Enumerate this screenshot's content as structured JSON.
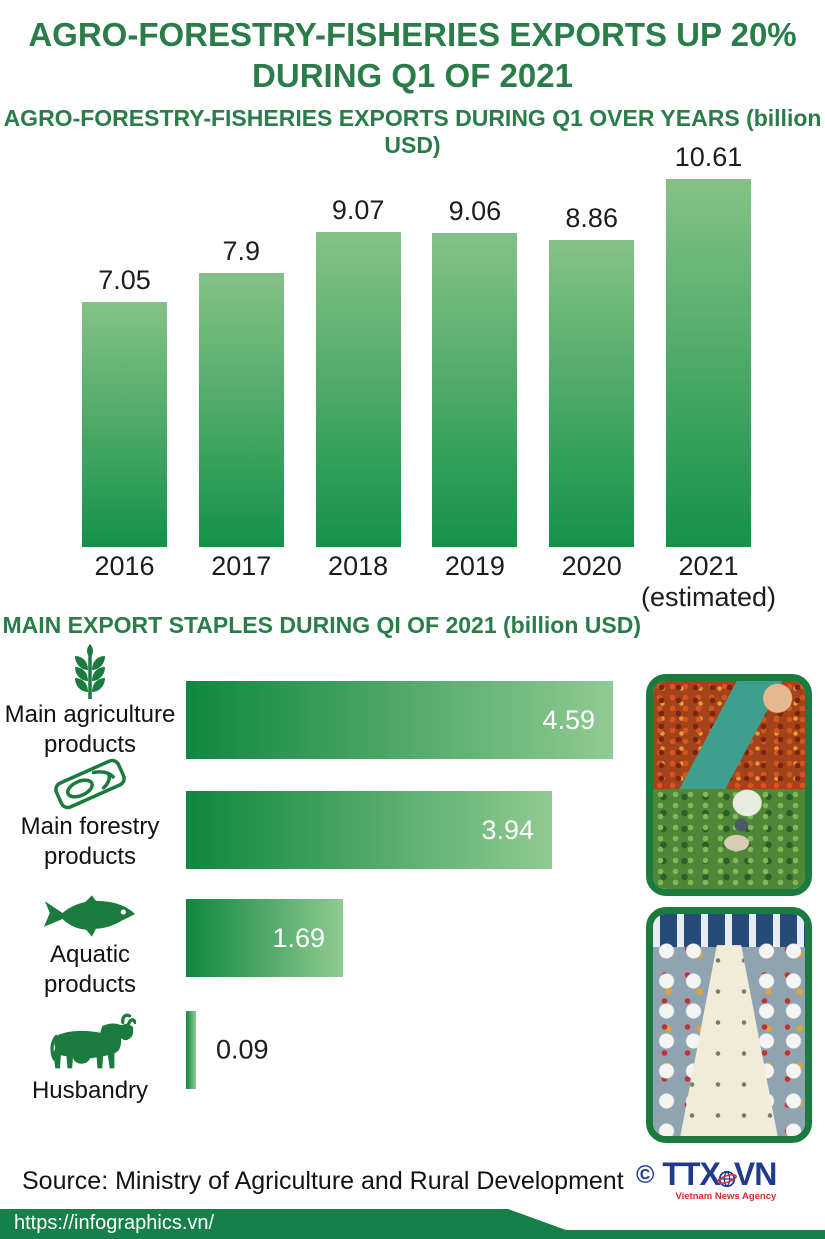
{
  "header": {
    "title_line1": "AGRO-FORESTRY-FISHERIES EXPORTS UP 20%",
    "title_line2": "DURING Q1 OF 2021"
  },
  "chart_data": [
    {
      "type": "bar",
      "orientation": "vertical",
      "title": "AGRO-FORESTRY-FISHERIES EXPORTS DURING Q1 OVER YEARS (billion USD)",
      "unit": "billion USD",
      "categories": [
        "2016",
        "2017",
        "2018",
        "2019",
        "2020",
        "2021"
      ],
      "category_sublabels": [
        "",
        "",
        "",
        "",
        "",
        "(estimated)"
      ],
      "values": [
        7.05,
        7.9,
        9.07,
        9.06,
        8.86,
        10.61
      ],
      "value_labels": [
        "7.05",
        "7.9",
        "9.07",
        "9.06",
        "8.86",
        "10.61"
      ],
      "ylim": [
        0,
        11
      ],
      "grid": false,
      "legend": "none",
      "bar_gradient": [
        "#85c187",
        "#14924a"
      ]
    },
    {
      "type": "bar",
      "orientation": "horizontal",
      "title": "MAIN EXPORT STAPLES DURING QI OF 2021 (billion USD)",
      "unit": "billion USD",
      "categories": [
        "Main agriculture products",
        "Main forestry products",
        "Aquatic products",
        "Husbandry"
      ],
      "category_lines": [
        [
          "Main agriculture",
          "products"
        ],
        [
          "Main forestry",
          "products"
        ],
        [
          "Aquatic",
          "products"
        ],
        [
          "Husbandry"
        ]
      ],
      "icons": [
        "wheat-icon",
        "timber-icon",
        "fish-icon",
        "cow-icon"
      ],
      "values": [
        4.59,
        3.94,
        1.69,
        0.09
      ],
      "value_labels": [
        "4.59",
        "3.94",
        "1.69",
        "0.09"
      ],
      "xlim": [
        0,
        4.8
      ],
      "grid": false,
      "legend": "none",
      "bar_gradient": [
        "#0f873f",
        "#90ca92"
      ]
    }
  ],
  "photos": [
    {
      "name": "coffee-berries-photo",
      "depicts": "hands holding harvested coffee berries"
    },
    {
      "name": "pepper-harvest-photo",
      "depicts": "farmer harvesting pepper plants"
    },
    {
      "name": "shrimp-processing-photo",
      "depicts": "workers at a seafood processing line"
    }
  ],
  "source": {
    "text": "Source: Ministry of Agriculture and Rural Development"
  },
  "agency_logo": {
    "copyright": "©",
    "name": "TTXVN",
    "name_part1": "TTX",
    "name_part2": "VN",
    "tagline": "Vietnam News Agency",
    "blue": "#203a8f",
    "red": "#e02a2a"
  },
  "footer": {
    "url": "https://infographics.vn/"
  },
  "colors": {
    "heading_green": "#2a7c49",
    "icon_green": "#1b7a3e",
    "footer_green": "#17804a",
    "text_black": "#1c1c1c"
  }
}
